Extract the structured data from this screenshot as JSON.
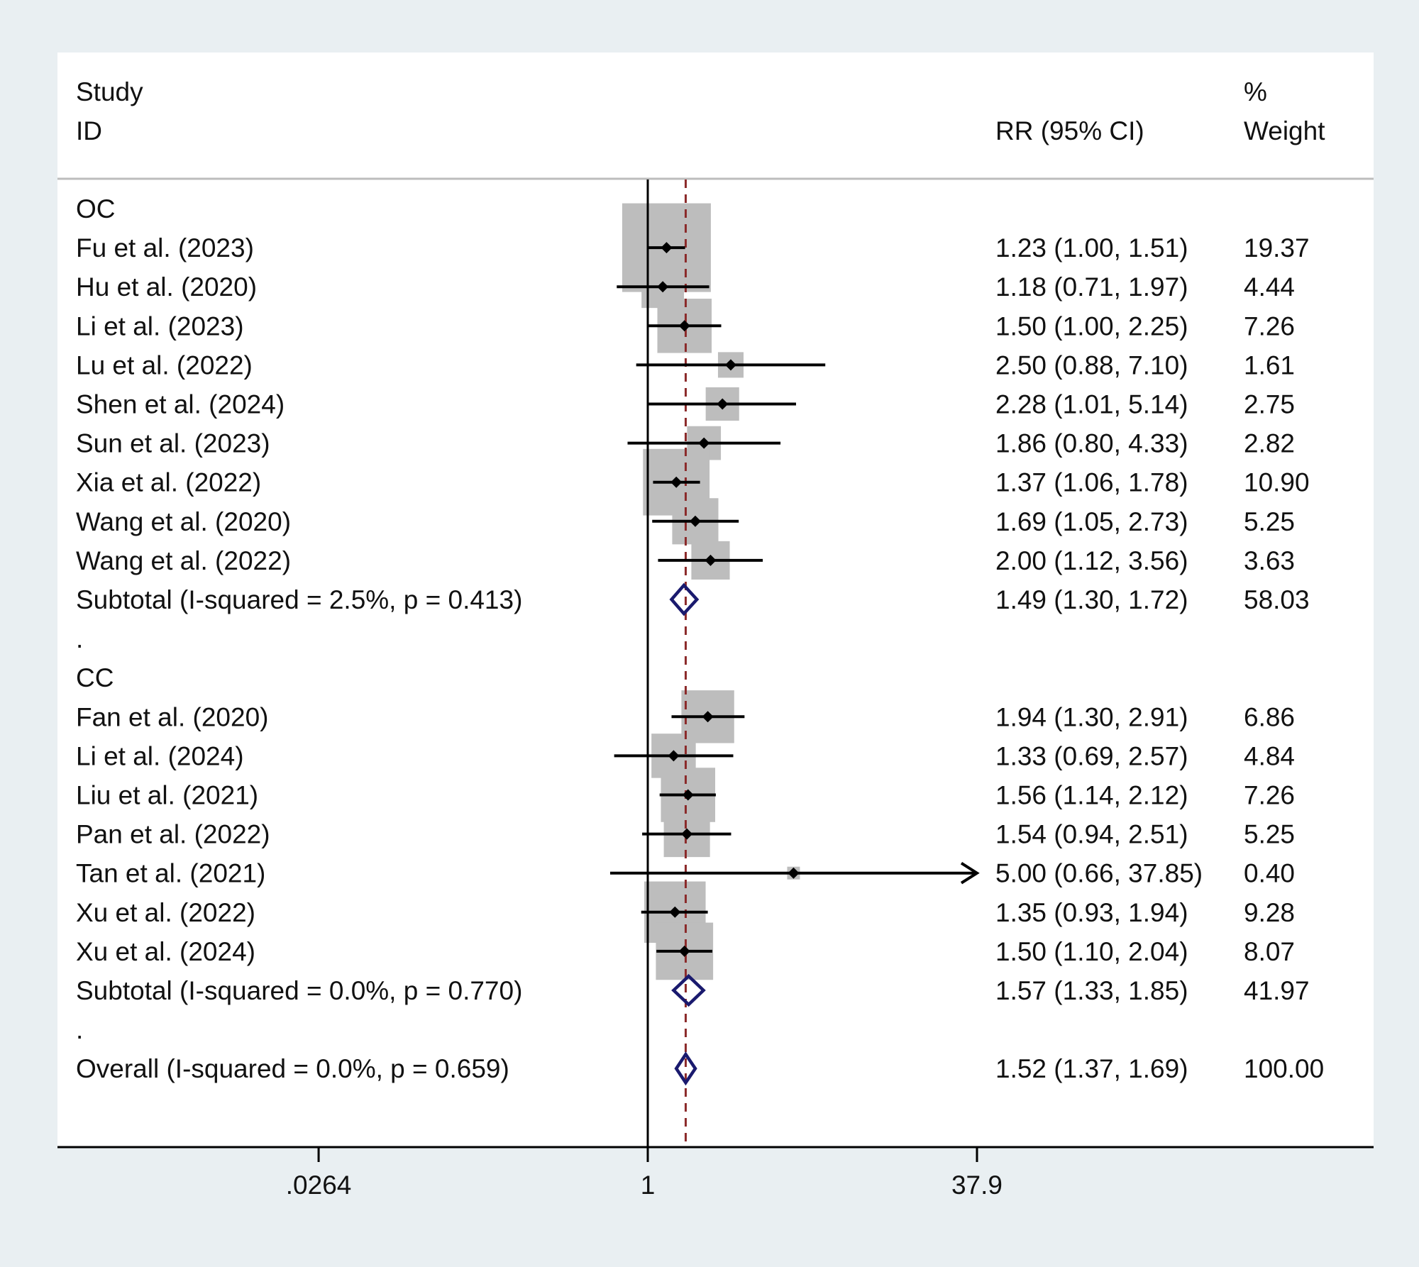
{
  "chart_data": {
    "type": "forest",
    "header": {
      "study_line1": "Study",
      "study_line2": "ID",
      "effect_label": "RR (95% CI)",
      "weight_line1": "%",
      "weight_line2": "Weight"
    },
    "axis": {
      "scale": "log",
      "tick_labels": [
        ".0264",
        "1",
        "37.9"
      ],
      "tick_values": [
        0.0264,
        1,
        37.9
      ],
      "xlim": [
        0.0264,
        37.9
      ]
    },
    "rows": [
      {
        "type": "group",
        "label": "OC"
      },
      {
        "type": "study",
        "label": "Fu et al. (2023)",
        "rr": 1.23,
        "lo": 1.0,
        "hi": 1.51,
        "ci_text": "1.23 (1.00, 1.51)",
        "weight": 19.37,
        "weight_text": "19.37"
      },
      {
        "type": "study",
        "label": "Hu et al. (2020)",
        "rr": 1.18,
        "lo": 0.71,
        "hi": 1.97,
        "ci_text": "1.18 (0.71, 1.97)",
        "weight": 4.44,
        "weight_text": "4.44"
      },
      {
        "type": "study",
        "label": "Li et al. (2023)",
        "rr": 1.5,
        "lo": 1.0,
        "hi": 2.25,
        "ci_text": "1.50 (1.00, 2.25)",
        "weight": 7.26,
        "weight_text": "7.26"
      },
      {
        "type": "study",
        "label": "Lu et al. (2022)",
        "rr": 2.5,
        "lo": 0.88,
        "hi": 7.1,
        "ci_text": "2.50 (0.88, 7.10)",
        "weight": 1.61,
        "weight_text": "1.61"
      },
      {
        "type": "study",
        "label": "Shen et al. (2024)",
        "rr": 2.28,
        "lo": 1.01,
        "hi": 5.14,
        "ci_text": "2.28 (1.01, 5.14)",
        "weight": 2.75,
        "weight_text": "2.75"
      },
      {
        "type": "study",
        "label": "Sun et al. (2023)",
        "rr": 1.86,
        "lo": 0.8,
        "hi": 4.33,
        "ci_text": "1.86 (0.80, 4.33)",
        "weight": 2.82,
        "weight_text": "2.82"
      },
      {
        "type": "study",
        "label": "Xia et al. (2022)",
        "rr": 1.37,
        "lo": 1.06,
        "hi": 1.78,
        "ci_text": "1.37 (1.06, 1.78)",
        "weight": 10.9,
        "weight_text": "10.90"
      },
      {
        "type": "study",
        "label": "Wang et al. (2020)",
        "rr": 1.69,
        "lo": 1.05,
        "hi": 2.73,
        "ci_text": "1.69 (1.05, 2.73)",
        "weight": 5.25,
        "weight_text": "5.25"
      },
      {
        "type": "study",
        "label": "Wang et al. (2022)",
        "rr": 2.0,
        "lo": 1.12,
        "hi": 3.56,
        "ci_text": "2.00 (1.12, 3.56)",
        "weight": 3.63,
        "weight_text": "3.63"
      },
      {
        "type": "subtotal",
        "label": "Subtotal  (I-squared = 2.5%, p = 0.413)",
        "rr": 1.49,
        "lo": 1.3,
        "hi": 1.72,
        "ci_text": "1.49 (1.30, 1.72)",
        "weight": 58.03,
        "weight_text": "58.03"
      },
      {
        "type": "spacer",
        "label": "."
      },
      {
        "type": "group",
        "label": "CC"
      },
      {
        "type": "study",
        "label": "Fan et al. (2020)",
        "rr": 1.94,
        "lo": 1.3,
        "hi": 2.91,
        "ci_text": "1.94 (1.30, 2.91)",
        "weight": 6.86,
        "weight_text": "6.86"
      },
      {
        "type": "study",
        "label": "Li et al. (2024)",
        "rr": 1.33,
        "lo": 0.69,
        "hi": 2.57,
        "ci_text": "1.33 (0.69, 2.57)",
        "weight": 4.84,
        "weight_text": "4.84"
      },
      {
        "type": "study",
        "label": "Liu et al. (2021)",
        "rr": 1.56,
        "lo": 1.14,
        "hi": 2.12,
        "ci_text": "1.56 (1.14, 2.12)",
        "weight": 7.26,
        "weight_text": "7.26"
      },
      {
        "type": "study",
        "label": "Pan et al. (2022)",
        "rr": 1.54,
        "lo": 0.94,
        "hi": 2.51,
        "ci_text": "1.54 (0.94, 2.51)",
        "weight": 5.25,
        "weight_text": "5.25"
      },
      {
        "type": "study",
        "label": "Tan et al. (2021)",
        "rr": 5.0,
        "lo": 0.66,
        "hi": 37.85,
        "ci_text": "5.00 (0.66, 37.85)",
        "weight": 0.4,
        "weight_text": "0.40",
        "arrow": true
      },
      {
        "type": "study",
        "label": "Xu et al. (2022)",
        "rr": 1.35,
        "lo": 0.93,
        "hi": 1.94,
        "ci_text": "1.35 (0.93, 1.94)",
        "weight": 9.28,
        "weight_text": "9.28"
      },
      {
        "type": "study",
        "label": "Xu et al. (2024)",
        "rr": 1.5,
        "lo": 1.1,
        "hi": 2.04,
        "ci_text": "1.50 (1.10, 2.04)",
        "weight": 8.07,
        "weight_text": "8.07"
      },
      {
        "type": "subtotal",
        "label": "Subtotal  (I-squared = 0.0%, p = 0.770)",
        "rr": 1.57,
        "lo": 1.33,
        "hi": 1.85,
        "ci_text": "1.57 (1.33, 1.85)",
        "weight": 41.97,
        "weight_text": "41.97"
      },
      {
        "type": "spacer",
        "label": "."
      },
      {
        "type": "overall",
        "label": "Overall  (I-squared = 0.0%, p = 0.659)",
        "rr": 1.52,
        "lo": 1.37,
        "hi": 1.69,
        "ci_text": "1.52 (1.37, 1.69)",
        "weight": 100.0,
        "weight_text": "100.00"
      }
    ],
    "overall_reference": 1.52,
    "null_value": 1,
    "colors": {
      "background": "#e9eff2",
      "panel": "#ffffff",
      "box": "#bdbdbd",
      "diamond": "#1a1a6e",
      "reference_line": "#8b2a2a",
      "ink": "#000000"
    }
  }
}
